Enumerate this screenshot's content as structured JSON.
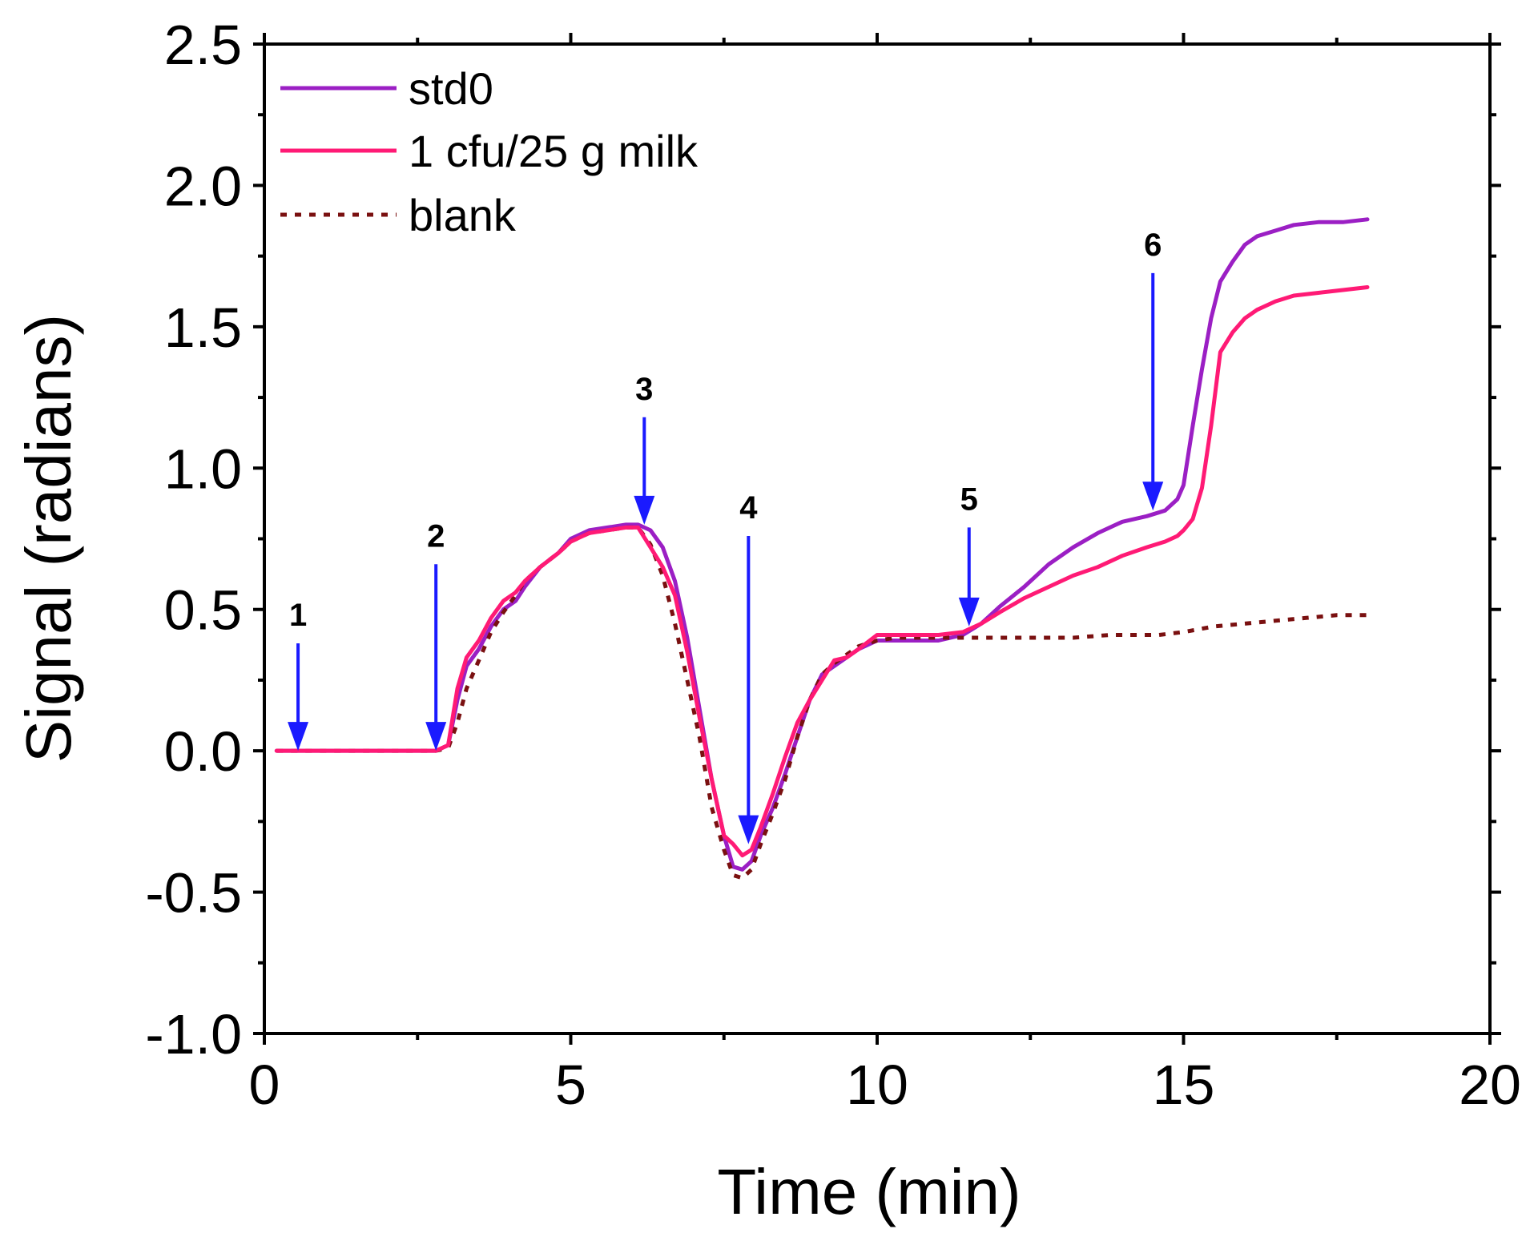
{
  "chart_data": {
    "type": "line",
    "title": "",
    "xlabel": "Time (min)",
    "ylabel": "Signal (radians)",
    "xlim": [
      0,
      20
    ],
    "ylim": [
      -1.0,
      2.5
    ],
    "xticks": [
      0,
      5,
      10,
      15,
      20
    ],
    "xtick_labels": [
      "0",
      "5",
      "10",
      "15",
      "20"
    ],
    "yticks": [
      -1.0,
      -0.5,
      0.0,
      0.5,
      1.0,
      1.5,
      2.0,
      2.5
    ],
    "ytick_labels": [
      "-1.0",
      "-0.5",
      "0.0",
      "0.5",
      "1.0",
      "1.5",
      "2.0",
      "2.5"
    ],
    "grid": false,
    "legend_position": "top-left",
    "colors": {
      "std0": "#9b1fc4",
      "sample": "#ff1a75",
      "blank": "#7a1010",
      "arrow": "#1a1aff",
      "axis": "#000000"
    },
    "series": [
      {
        "name": "std0",
        "style": "solid",
        "x": [
          0.2,
          0.5,
          1.0,
          1.5,
          2.0,
          2.5,
          2.8,
          3.0,
          3.15,
          3.3,
          3.5,
          3.7,
          3.9,
          4.1,
          4.25,
          4.5,
          4.8,
          5.0,
          5.3,
          5.6,
          5.9,
          6.1,
          6.3,
          6.5,
          6.7,
          6.9,
          7.1,
          7.3,
          7.5,
          7.65,
          7.8,
          7.95,
          8.1,
          8.3,
          8.5,
          8.7,
          8.9,
          9.1,
          9.3,
          9.5,
          9.7,
          10.0,
          10.3,
          10.6,
          11.0,
          11.4,
          11.7,
          12.0,
          12.4,
          12.8,
          13.2,
          13.6,
          14.0,
          14.4,
          14.7,
          14.9,
          15.0,
          15.15,
          15.3,
          15.45,
          15.6,
          15.8,
          16.0,
          16.2,
          16.5,
          16.8,
          17.2,
          17.6,
          18.0
        ],
        "values": [
          0.0,
          0.0,
          0.0,
          0.0,
          0.0,
          0.0,
          0.0,
          0.02,
          0.18,
          0.3,
          0.36,
          0.44,
          0.5,
          0.53,
          0.58,
          0.65,
          0.7,
          0.75,
          0.78,
          0.79,
          0.8,
          0.8,
          0.78,
          0.72,
          0.6,
          0.4,
          0.15,
          -0.1,
          -0.3,
          -0.41,
          -0.42,
          -0.39,
          -0.3,
          -0.2,
          -0.08,
          0.05,
          0.18,
          0.27,
          0.3,
          0.33,
          0.36,
          0.39,
          0.39,
          0.39,
          0.39,
          0.41,
          0.45,
          0.51,
          0.58,
          0.66,
          0.72,
          0.77,
          0.81,
          0.83,
          0.85,
          0.89,
          0.94,
          1.15,
          1.35,
          1.53,
          1.66,
          1.73,
          1.79,
          1.82,
          1.84,
          1.86,
          1.87,
          1.87,
          1.88
        ]
      },
      {
        "name": "1 cfu/25 g milk",
        "style": "solid",
        "x": [
          0.2,
          0.5,
          1.0,
          1.5,
          2.0,
          2.5,
          2.8,
          3.0,
          3.15,
          3.3,
          3.5,
          3.7,
          3.9,
          4.1,
          4.25,
          4.5,
          4.8,
          5.0,
          5.3,
          5.6,
          5.9,
          6.1,
          6.3,
          6.5,
          6.7,
          6.9,
          7.1,
          7.3,
          7.5,
          7.65,
          7.8,
          7.95,
          8.1,
          8.3,
          8.5,
          8.7,
          8.9,
          9.1,
          9.3,
          9.5,
          9.7,
          10.0,
          10.3,
          10.6,
          11.0,
          11.4,
          11.7,
          12.0,
          12.4,
          12.8,
          13.2,
          13.6,
          14.0,
          14.4,
          14.7,
          14.9,
          15.0,
          15.15,
          15.3,
          15.45,
          15.6,
          15.8,
          16.0,
          16.2,
          16.5,
          16.8,
          17.2,
          17.6,
          18.0
        ],
        "values": [
          0.0,
          0.0,
          0.0,
          0.0,
          0.0,
          0.0,
          0.0,
          0.02,
          0.22,
          0.33,
          0.39,
          0.47,
          0.53,
          0.56,
          0.6,
          0.65,
          0.7,
          0.74,
          0.77,
          0.78,
          0.79,
          0.79,
          0.72,
          0.65,
          0.55,
          0.35,
          0.12,
          -0.1,
          -0.3,
          -0.33,
          -0.37,
          -0.35,
          -0.27,
          -0.15,
          -0.02,
          0.1,
          0.18,
          0.25,
          0.32,
          0.33,
          0.36,
          0.41,
          0.41,
          0.41,
          0.41,
          0.42,
          0.45,
          0.49,
          0.54,
          0.58,
          0.62,
          0.65,
          0.69,
          0.72,
          0.74,
          0.76,
          0.78,
          0.82,
          0.93,
          1.15,
          1.41,
          1.48,
          1.53,
          1.56,
          1.59,
          1.61,
          1.62,
          1.63,
          1.64
        ]
      },
      {
        "name": "blank",
        "style": "dotted",
        "x": [
          0.2,
          0.5,
          1.0,
          1.5,
          2.0,
          2.5,
          2.8,
          3.0,
          3.15,
          3.3,
          3.5,
          3.7,
          3.9,
          4.1,
          4.25,
          4.5,
          4.8,
          5.0,
          5.3,
          5.6,
          5.9,
          6.1,
          6.3,
          6.5,
          6.7,
          6.9,
          7.1,
          7.3,
          7.5,
          7.65,
          7.8,
          7.95,
          8.1,
          8.3,
          8.5,
          8.7,
          8.9,
          9.1,
          9.3,
          9.5,
          9.7,
          10.0,
          10.3,
          10.6,
          11.0,
          11.4,
          12.0,
          12.6,
          13.2,
          13.8,
          14.2,
          14.6,
          15.0,
          15.5,
          16.0,
          16.5,
          17.0,
          17.5,
          18.0
        ],
        "values": [
          0.0,
          0.0,
          0.0,
          0.0,
          0.0,
          0.0,
          0.0,
          0.01,
          0.1,
          0.22,
          0.32,
          0.42,
          0.49,
          0.55,
          0.6,
          0.65,
          0.7,
          0.74,
          0.77,
          0.78,
          0.79,
          0.79,
          0.73,
          0.62,
          0.45,
          0.25,
          0.05,
          -0.2,
          -0.35,
          -0.44,
          -0.45,
          -0.42,
          -0.33,
          -0.22,
          -0.1,
          0.05,
          0.18,
          0.27,
          0.31,
          0.34,
          0.37,
          0.39,
          0.4,
          0.4,
          0.4,
          0.4,
          0.4,
          0.4,
          0.4,
          0.41,
          0.41,
          0.41,
          0.42,
          0.44,
          0.45,
          0.46,
          0.47,
          0.48,
          0.48
        ]
      }
    ],
    "annotations": [
      {
        "label": "1",
        "x": 0.55,
        "y_top": 0.38,
        "y_tip": 0.0
      },
      {
        "label": "2",
        "x": 2.8,
        "y_top": 0.66,
        "y_tip": 0.0
      },
      {
        "label": "3",
        "x": 6.2,
        "y_top": 1.18,
        "y_tip": 0.8
      },
      {
        "label": "4",
        "x": 7.9,
        "y_top": 0.76,
        "y_tip": -0.33
      },
      {
        "label": "5",
        "x": 11.5,
        "y_top": 0.79,
        "y_tip": 0.44
      },
      {
        "label": "6",
        "x": 14.5,
        "y_top": 1.69,
        "y_tip": 0.85
      }
    ]
  }
}
